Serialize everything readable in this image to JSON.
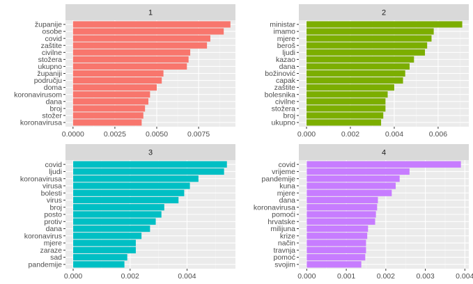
{
  "chart_data": [
    {
      "type": "bar",
      "orientation": "horizontal",
      "panel_label": "1",
      "color": "#F8766D",
      "categories": [
        "županije",
        "osobe",
        "covid",
        "zaštite",
        "civilne",
        "stožera",
        "ukupno",
        "županiji",
        "području",
        "doma",
        "koronavirusom",
        "dana",
        "broj",
        "stožer",
        "koronavirusa"
      ],
      "values": [
        0.0094,
        0.009,
        0.0082,
        0.008,
        0.007,
        0.0069,
        0.0068,
        0.0054,
        0.0053,
        0.005,
        0.0046,
        0.0045,
        0.0043,
        0.0042,
        0.0041
      ],
      "xlim": [
        -0.00045,
        0.0097
      ],
      "xticks": [
        0.0,
        0.0025,
        0.005,
        0.0075
      ],
      "xtick_labels": [
        "0.0000",
        "0.0025",
        "0.0050",
        "0.0075"
      ]
    },
    {
      "type": "bar",
      "orientation": "horizontal",
      "panel_label": "2",
      "color": "#7CAE00",
      "categories": [
        "ministar",
        "imamo",
        "mjere",
        "beroš",
        "ljudi",
        "kazao",
        "dana",
        "božinović",
        "capak",
        "zaštite",
        "bolesnika",
        "civilne",
        "stožera",
        "broj",
        "ukupno"
      ],
      "values": [
        0.0071,
        0.0058,
        0.0057,
        0.0055,
        0.0054,
        0.0049,
        0.0047,
        0.0045,
        0.0044,
        0.004,
        0.0037,
        0.0036,
        0.0036,
        0.0035,
        0.0034
      ],
      "xlim": [
        -0.00035,
        0.0074
      ],
      "xticks": [
        0.0,
        0.002,
        0.004,
        0.006
      ],
      "xtick_labels": [
        "0.000",
        "0.002",
        "0.004",
        "0.006"
      ]
    },
    {
      "type": "bar",
      "orientation": "horizontal",
      "panel_label": "3",
      "color": "#00BFC4",
      "categories": [
        "covid",
        "ljudi",
        "koronavirusa",
        "virusa",
        "bolesti",
        "virus",
        "broj",
        "posto",
        "protiv",
        "dana",
        "koronavirus",
        "mjere",
        "zaraze",
        "sad",
        "pandemije"
      ],
      "values": [
        0.0054,
        0.0053,
        0.0044,
        0.0041,
        0.0039,
        0.0037,
        0.0032,
        0.0031,
        0.0029,
        0.0027,
        0.0024,
        0.0022,
        0.0022,
        0.0019,
        0.0018
      ],
      "xlim": [
        -0.00027,
        0.0057
      ],
      "xticks": [
        0.0,
        0.002,
        0.004
      ],
      "xtick_labels": [
        "0.000",
        "0.002",
        "0.004"
      ]
    },
    {
      "type": "bar",
      "orientation": "horizontal",
      "panel_label": "4",
      "color": "#C77CFF",
      "categories": [
        "covid",
        "vrijeme",
        "pandemije",
        "kuna",
        "mjere",
        "dana",
        "koronavirusa",
        "pomoći",
        "hrvatske",
        "milijuna",
        "krize",
        "način",
        "travnja",
        "pomoć",
        "svojim"
      ],
      "values": [
        0.0039,
        0.0026,
        0.00235,
        0.00225,
        0.00215,
        0.0018,
        0.00178,
        0.00175,
        0.00173,
        0.00155,
        0.00153,
        0.0015,
        0.0015,
        0.00148,
        0.00138
      ],
      "xlim": [
        -0.0002,
        0.0041
      ],
      "xticks": [
        0.0,
        0.001,
        0.002,
        0.003,
        0.004
      ],
      "xtick_labels": [
        "0.000",
        "0.001",
        "0.002",
        "0.003",
        "0.004"
      ]
    }
  ]
}
